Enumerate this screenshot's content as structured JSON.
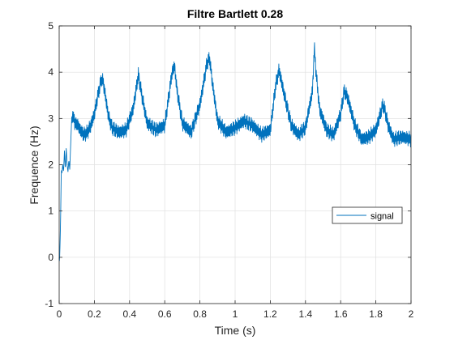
{
  "chart_data": {
    "type": "line",
    "title": "Filtre Bartlett 0.28",
    "xlabel": "Time (s)",
    "ylabel": "Frequence (Hz)",
    "xlim": [
      0,
      2
    ],
    "ylim": [
      -1,
      5
    ],
    "x_ticks": [
      0,
      0.2,
      0.4,
      0.6,
      0.8,
      1,
      1.2,
      1.4,
      1.6,
      1.8,
      2
    ],
    "x_tick_labels": [
      "0",
      "0.2",
      "0.4",
      "0.6",
      "0.8",
      "1",
      "1.2",
      "1.4",
      "1.6",
      "1.8",
      "2"
    ],
    "y_ticks": [
      -1,
      0,
      1,
      2,
      3,
      4,
      5
    ],
    "y_tick_labels": [
      "-1",
      "0",
      "1",
      "2",
      "3",
      "4",
      "5"
    ],
    "grid": true,
    "legend": "middle-right",
    "series": [
      {
        "name": "signal",
        "color": "#0072bd",
        "x": [
          0,
          0.002,
          0.005,
          0.008,
          0.012,
          0.015,
          0.02,
          0.025,
          0.03,
          0.035,
          0.04,
          0.045,
          0.05,
          0.055,
          0.06,
          0.065,
          0.07,
          0.075,
          0.08,
          0.085,
          0.09,
          0.1,
          0.12,
          0.14,
          0.16,
          0.18,
          0.2,
          0.22,
          0.24,
          0.25,
          0.26,
          0.28,
          0.3,
          0.34,
          0.38,
          0.42,
          0.45,
          0.47,
          0.5,
          0.55,
          0.6,
          0.64,
          0.655,
          0.67,
          0.7,
          0.75,
          0.8,
          0.84,
          0.855,
          0.87,
          0.9,
          0.95,
          1,
          1.05,
          1.1,
          1.15,
          1.2,
          1.23,
          1.25,
          1.28,
          1.32,
          1.36,
          1.4,
          1.44,
          1.45,
          1.46,
          1.48,
          1.52,
          1.56,
          1.6,
          1.62,
          1.64,
          1.68,
          1.72,
          1.76,
          1.8,
          1.84,
          1.85,
          1.87,
          1.9,
          1.95,
          2
        ],
        "y": [
          0,
          -0.1,
          0.3,
          0.8,
          1.9,
          1.8,
          2.0,
          1.85,
          2.3,
          1.9,
          2.35,
          2.0,
          1.85,
          2.1,
          1.9,
          2.4,
          2.9,
          3.1,
          2.95,
          3.05,
          2.85,
          2.9,
          2.75,
          2.65,
          2.7,
          2.85,
          3.1,
          3.5,
          3.85,
          3.8,
          3.55,
          3.05,
          2.8,
          2.7,
          2.75,
          3.2,
          3.95,
          3.5,
          2.9,
          2.75,
          2.85,
          3.95,
          4.15,
          3.6,
          2.9,
          2.7,
          3.3,
          4.2,
          4.3,
          3.8,
          2.95,
          2.7,
          2.8,
          2.95,
          2.85,
          2.65,
          2.75,
          3.7,
          4.05,
          3.5,
          2.85,
          2.65,
          2.8,
          3.6,
          4.55,
          4.0,
          3.2,
          2.75,
          2.65,
          3.1,
          3.6,
          3.45,
          2.85,
          2.55,
          2.6,
          2.75,
          3.3,
          3.2,
          2.85,
          2.55,
          2.6,
          2.55
        ]
      }
    ]
  }
}
